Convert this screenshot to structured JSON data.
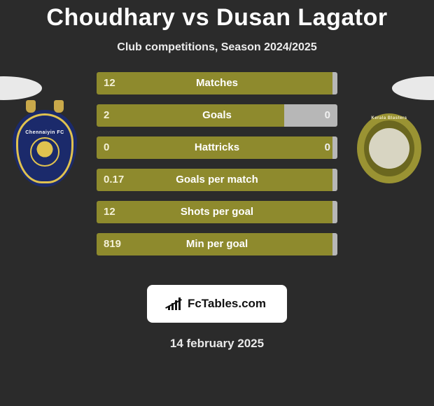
{
  "title": "Choudhary vs Dusan Lagator",
  "subtitle": "Club competitions, Season 2024/2025",
  "colors": {
    "background": "#2b2b2b",
    "bar_left": "#8e8a2d",
    "bar_right": "#b7b7b7",
    "text": "#ffffff",
    "value_left": "#f4f1d7",
    "value_right": "#f0f0f0"
  },
  "left_team": {
    "name": "Chennaiyin FC",
    "badge_primary": "#1b2a6b",
    "badge_accent": "#e0c24f"
  },
  "right_team": {
    "name": "Kerala Blasters",
    "badge_primary": "#9a9333",
    "badge_inner": "#6b671f"
  },
  "bars": [
    {
      "label": "Matches",
      "left": "12",
      "right": "",
      "left_pct": 98
    },
    {
      "label": "Goals",
      "left": "2",
      "right": "0",
      "left_pct": 78
    },
    {
      "label": "Hattricks",
      "left": "0",
      "right": "0",
      "left_pct": 98
    },
    {
      "label": "Goals per match",
      "left": "0.17",
      "right": "",
      "left_pct": 98
    },
    {
      "label": "Shots per goal",
      "left": "12",
      "right": "",
      "left_pct": 98
    },
    {
      "label": "Min per goal",
      "left": "819",
      "right": "",
      "left_pct": 98
    }
  ],
  "brand": "FcTables.com",
  "date": "14 february 2025"
}
